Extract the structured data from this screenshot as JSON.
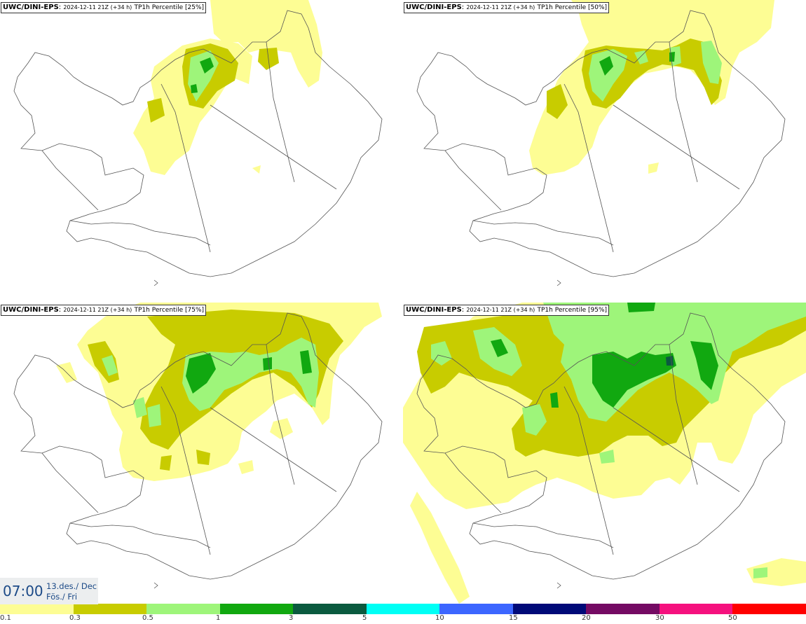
{
  "panels": [
    {
      "model": "UWC/DINI-EPS",
      "run": "2024-12-11 21Z (+34 h)",
      "param": "TP1h Percentile [25%]"
    },
    {
      "model": "UWC/DINI-EPS",
      "run": "2024-12-11 21Z (+34 h)",
      "param": "TP1h Percentile [50%]"
    },
    {
      "model": "UWC/DINI-EPS",
      "run": "2024-12-11 21Z (+34 h)",
      "param": "TP1h Percentile [75%]"
    },
    {
      "model": "UWC/DINI-EPS",
      "run": "2024-12-11 21Z (+34 h)",
      "param": "TP1h Percentile [95%]"
    }
  ],
  "valid_time": {
    "time": "07:00",
    "date_line1": "13.des./ Dec",
    "date_line2": "Fös./ Fri"
  },
  "colorbar": {
    "colors": [
      "#fdfd94",
      "#c8cc00",
      "#9ef57a",
      "#11a810",
      "#0b5a3f",
      "#00fff5",
      "#3c66ff",
      "#000a78",
      "#740a63",
      "#f5117e",
      "#ff0000"
    ],
    "labels": [
      "0.1",
      "0.3",
      "0.5",
      "1",
      "3",
      "5",
      "10",
      "15",
      "20",
      "30",
      "50"
    ]
  }
}
